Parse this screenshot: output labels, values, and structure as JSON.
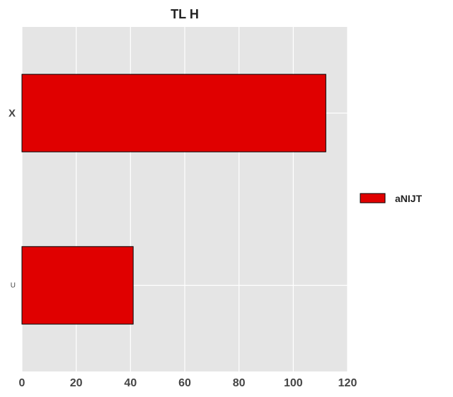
{
  "chart_data": {
    "type": "bar",
    "orientation": "horizontal",
    "title": "TL H",
    "xlabel": "",
    "ylabel": "",
    "categories": [
      "X",
      "U"
    ],
    "series": [
      {
        "name": "aNIJT",
        "values": [
          112,
          41
        ]
      }
    ],
    "xlim": [
      0,
      120
    ],
    "xticks": [
      0,
      20,
      40,
      60,
      80,
      100,
      120
    ],
    "grid": true,
    "legend_position": "right",
    "colors": {
      "bar": "#e00000",
      "bar_edge": "#000000",
      "plot_background": "#e5e5e5",
      "grid": "#ffffff"
    }
  }
}
